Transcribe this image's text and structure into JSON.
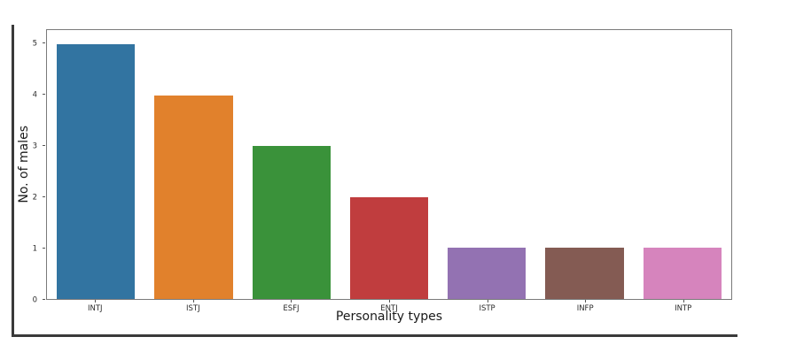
{
  "figure": {
    "background": "#ffffff",
    "frame_color": "#3a3a3a",
    "spine_color": "#7a7a7a",
    "tick_color": "#555555",
    "text_color": "#1a1a1a"
  },
  "chart_data": {
    "type": "bar",
    "title": "",
    "xlabel": "Personality types",
    "ylabel": "No. of males",
    "categories": [
      "INTJ",
      "ISTJ",
      "ESFJ",
      "ENTJ",
      "ISTP",
      "INFP",
      "INTP"
    ],
    "values": [
      5,
      4,
      3,
      2,
      1,
      1,
      1
    ],
    "colors": [
      "#3274a1",
      "#e1812c",
      "#3a923a",
      "#c03d3e",
      "#9372b2",
      "#845b53",
      "#d684bd"
    ],
    "yticks": [
      0,
      1,
      2,
      3,
      4,
      5
    ],
    "ylim": [
      0,
      5.28
    ],
    "bar_width_fraction": 0.8,
    "grid": false,
    "legend": false
  }
}
